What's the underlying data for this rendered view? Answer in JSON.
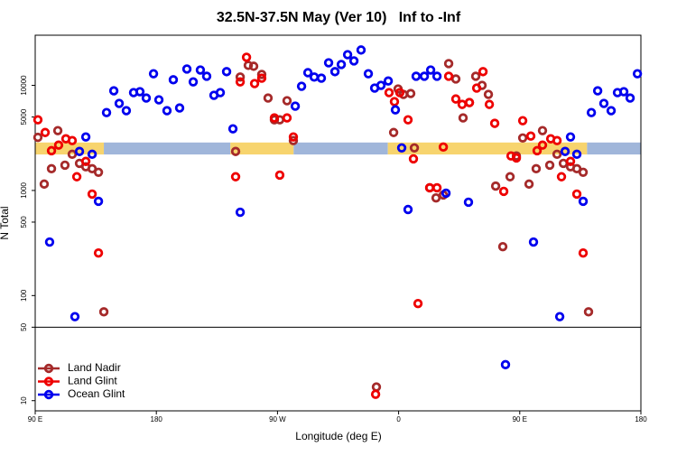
{
  "chart_data": {
    "type": "scatter",
    "title": "32.5N-37.5N May (Ver 10)   Inf to -Inf",
    "xlabel": "Longitude (deg E)",
    "ylabel": "N Total",
    "xlim": [
      90,
      540
    ],
    "ylim": [
      8,
      30000
    ],
    "log_y": true,
    "xticks": [
      {
        "value": 90,
        "label": "90 E"
      },
      {
        "value": 180,
        "label": "180"
      },
      {
        "value": 270,
        "label": "90 W"
      },
      {
        "value": 360,
        "label": "0"
      },
      {
        "value": 450,
        "label": "90 E"
      },
      {
        "value": 540,
        "label": "180"
      }
    ],
    "yticks": [
      10,
      50,
      100,
      500,
      1000,
      5000,
      10000
    ],
    "hline": 50,
    "legend": "lower left",
    "surface_band": {
      "ylim": [
        2200,
        2860
      ],
      "segments": [
        {
          "xlim": [
            90,
            141
          ],
          "color": "#f7d46e"
        },
        {
          "xlim": [
            141,
            235
          ],
          "color": "#a0b6da"
        },
        {
          "xlim": [
            235,
            282
          ],
          "color": "#f7d46e"
        },
        {
          "xlim": [
            282,
            352
          ],
          "color": "#a0b6da"
        },
        {
          "xlim": [
            352,
            500
          ],
          "color": "#f7d46e"
        },
        {
          "xlim": [
            500,
            540
          ],
          "color": "#a0b6da"
        }
      ]
    },
    "series": [
      {
        "name": "Land Nadir",
        "color": "#a52a2a",
        "x": [
          92.0,
          96.7,
          102.1,
          106.8,
          112.1,
          117.5,
          122.9,
          127.6,
          132.3,
          137.0,
          141.0,
          238.9,
          242.3,
          248.3,
          252.3,
          258.3,
          263.0,
          267.7,
          271.7,
          277.1,
          281.8,
          343.5,
          356.3,
          359.6,
          363.6,
          369.0,
          371.7,
          383.1,
          387.8,
          393.2,
          397.2,
          402.5,
          407.9,
          412.6,
          417.3,
          422.0,
          426.7,
          432.1,
          437.4,
          442.8,
          447.5,
          452.2,
          456.9,
          462.2,
          466.9,
          472.3,
          477.7,
          482.4,
          487.7,
          492.4,
          497.1,
          501.1
        ],
        "values": [
          3200,
          1150,
          1610,
          3710,
          1740,
          2210,
          1810,
          1680,
          1610,
          1490,
          70,
          2350,
          12000,
          15500,
          15200,
          12700,
          7570,
          4700,
          4700,
          7140,
          2980,
          13.5,
          3560,
          9240,
          8200,
          8360,
          2540,
          1060,
          850,
          906,
          16100,
          11500,
          4900,
          6860,
          12200,
          10000,
          8200,
          1100,
          292,
          1350,
          2130,
          3160,
          1150,
          1610,
          3710,
          1740,
          2210,
          1810,
          1680,
          1610,
          1490,
          70
        ]
      },
      {
        "name": "Land Glint",
        "color": "#ee0000",
        "x": [
          92.0,
          97.4,
          102.1,
          107.4,
          112.8,
          117.5,
          120.9,
          127.6,
          132.3,
          137.0,
          238.9,
          242.3,
          247.0,
          253.0,
          258.3,
          267.7,
          271.7,
          277.1,
          281.8,
          342.9,
          352.9,
          356.9,
          360.9,
          367.0,
          371.0,
          374.4,
          383.1,
          388.5,
          393.2,
          397.2,
          402.5,
          407.2,
          412.6,
          418.0,
          422.7,
          427.4,
          431.4,
          438.1,
          443.5,
          447.5,
          452.2,
          458.2,
          462.9,
          466.9,
          473.0,
          477.7,
          481.0,
          487.7,
          492.4,
          497.1
        ],
        "values": [
          4700,
          3560,
          2390,
          2700,
          3100,
          2980,
          1350,
          1890,
          924,
          254,
          1350,
          10800,
          18500,
          10400,
          11700,
          4900,
          1400,
          4900,
          3230,
          11.5,
          8530,
          7000,
          8530,
          4700,
          2000,
          84,
          1060,
          1060,
          2590,
          12200,
          7420,
          6590,
          6860,
          9420,
          13500,
          6590,
          4350,
          980,
          2130,
          2040,
          4610,
          3290,
          2390,
          2700,
          3100,
          2980,
          1350,
          1890,
          924,
          254
        ]
      },
      {
        "name": "Ocean Glint",
        "color": "#0000ee",
        "x": [
          100.7,
          119.5,
          122.9,
          127.6,
          132.3,
          137.0,
          143.0,
          148.4,
          152.4,
          157.7,
          163.1,
          167.8,
          172.5,
          177.9,
          181.9,
          187.9,
          192.6,
          197.3,
          202.7,
          207.4,
          212.7,
          217.4,
          222.8,
          227.5,
          232.2,
          236.9,
          242.3,
          283.2,
          287.9,
          292.6,
          297.3,
          302.6,
          308.0,
          312.7,
          317.4,
          322.1,
          326.8,
          332.1,
          337.5,
          342.2,
          346.9,
          352.3,
          357.6,
          362.3,
          367.0,
          373.0,
          379.1,
          383.8,
          388.5,
          395.2,
          411.9,
          439.4,
          460.2,
          479.7,
          483.7,
          487.7,
          492.4,
          497.1,
          503.2,
          507.9,
          512.5,
          517.9,
          522.6,
          527.3,
          532.0,
          537.4
        ],
        "values": [
          323,
          63,
          2350,
          3230,
          2210,
          788,
          5510,
          8870,
          6730,
          5740,
          8530,
          8710,
          7570,
          12900,
          7280,
          5740,
          11300,
          6090,
          14300,
          10800,
          14000,
          12200,
          8040,
          8530,
          13500,
          3860,
          621,
          6340,
          9800,
          13200,
          12000,
          11700,
          16400,
          13500,
          15800,
          19600,
          17100,
          21700,
          12900,
          9420,
          10000,
          11000,
          5850,
          2540,
          659,
          12200,
          12200,
          14000,
          12200,
          942,
          773,
          22,
          323,
          63,
          2350,
          3230,
          2210,
          788,
          5510,
          8870,
          6730,
          5740,
          8530,
          8710,
          7570,
          12900
        ]
      }
    ]
  }
}
